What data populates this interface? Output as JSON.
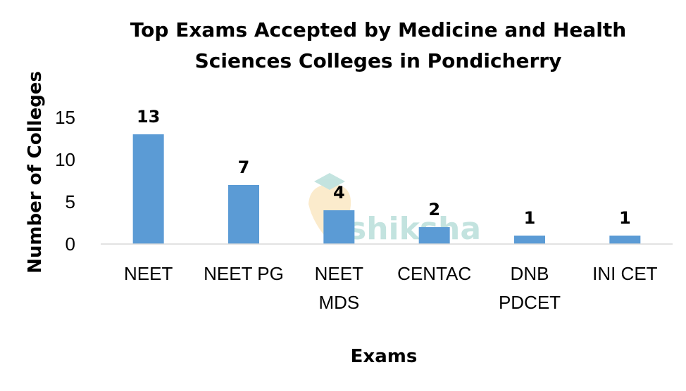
{
  "watermark": {
    "text": "shiksha"
  },
  "chart_data": {
    "type": "bar",
    "title": "Top Exams Accepted by Medicine and Health Sciences Colleges in Pondicherry",
    "title_lines": [
      "Top Exams Accepted by Medicine and Health",
      "Sciences Colleges in Pondicherry"
    ],
    "xlabel": "Exams",
    "ylabel": "Number of Colleges",
    "categories": [
      "NEET",
      "NEET PG",
      "NEET MDS",
      "CENTAC",
      "DNB PDCET",
      "INI CET"
    ],
    "category_lines": [
      [
        "NEET"
      ],
      [
        "NEET PG"
      ],
      [
        "NEET",
        "MDS"
      ],
      [
        "CENTAC"
      ],
      [
        "DNB",
        "PDCET"
      ],
      [
        "INI CET"
      ]
    ],
    "values": [
      13,
      7,
      4,
      2,
      1,
      1
    ],
    "data_labels": [
      "13",
      "7",
      "4",
      "2",
      "1",
      "1"
    ],
    "yticks": [
      0,
      5,
      10,
      15
    ],
    "ylim": [
      0,
      15
    ],
    "grid": false,
    "legend": "none",
    "bar_color": "#5b9bd5",
    "axis_color": "#d9d9d9"
  }
}
